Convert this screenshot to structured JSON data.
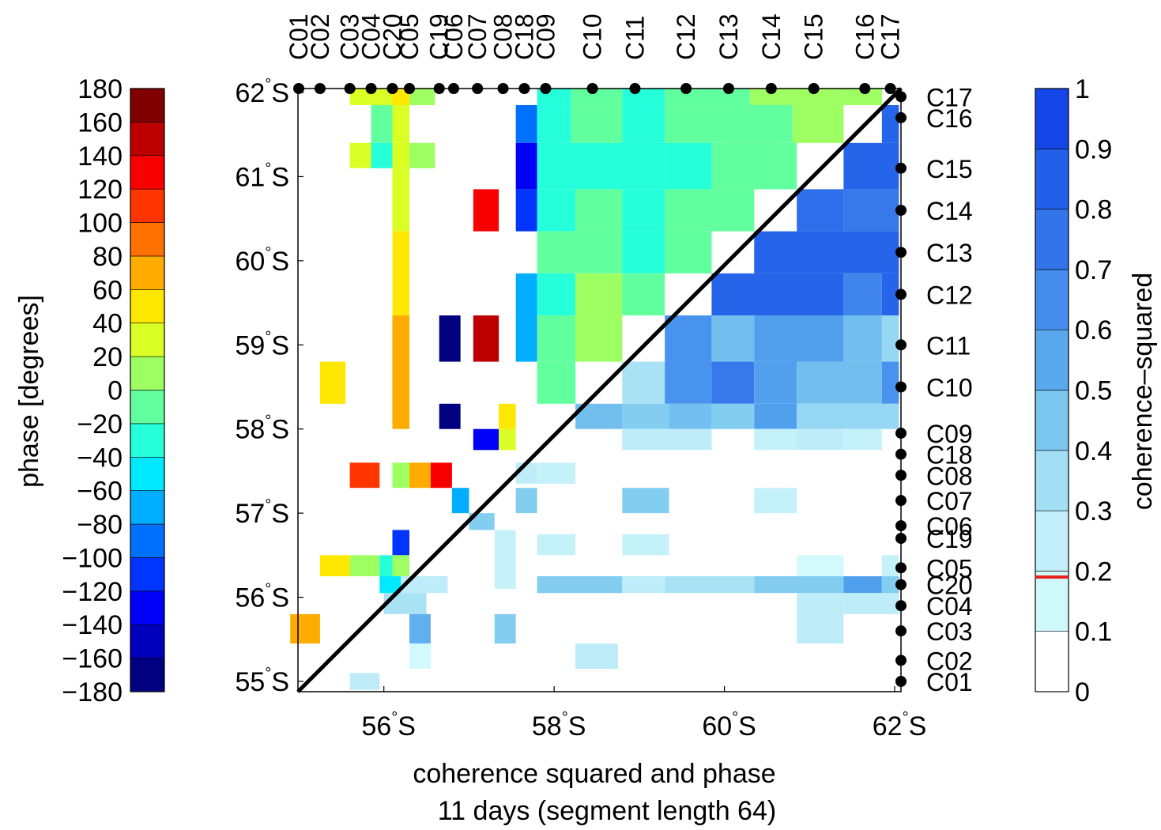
{
  "chart_data": {
    "type": "heatmap",
    "xlabel": "coherence squared and phase",
    "subtitle": "11 days (segment length 64)",
    "x_ticks": [
      {
        "value": 56,
        "label": "56",
        "hemi": "S"
      },
      {
        "value": 58,
        "label": "58",
        "hemi": "S"
      },
      {
        "value": 60,
        "label": "60",
        "hemi": "S"
      },
      {
        "value": 62,
        "label": "62",
        "hemi": "S"
      }
    ],
    "y_ticks": [
      {
        "value": 55,
        "label": "55",
        "hemi": "S"
      },
      {
        "value": 56,
        "label": "56",
        "hemi": "S"
      },
      {
        "value": 57,
        "label": "57",
        "hemi": "S"
      },
      {
        "value": 58,
        "label": "58",
        "hemi": "S"
      },
      {
        "value": 59,
        "label": "59",
        "hemi": "S"
      },
      {
        "value": 60,
        "label": "60",
        "hemi": "S"
      },
      {
        "value": 61,
        "label": "61",
        "hemi": "S"
      },
      {
        "value": 62,
        "label": "62",
        "hemi": "S"
      }
    ],
    "xlim": [
      54.9,
      62.05
    ],
    "ylim": [
      54.9,
      62.05
    ],
    "stations_top": [
      {
        "name": "C01",
        "lat": 55.0
      },
      {
        "name": "C02",
        "lat": 55.25
      },
      {
        "name": "C03",
        "lat": 55.6
      },
      {
        "name": "C04",
        "lat": 55.85
      },
      {
        "name": "C20",
        "lat": 56.1
      },
      {
        "name": "C05",
        "lat": 56.3
      },
      {
        "name": "C19",
        "lat": 56.65
      },
      {
        "name": "C06",
        "lat": 56.82
      },
      {
        "name": "C07",
        "lat": 57.1
      },
      {
        "name": "C08",
        "lat": 57.4
      },
      {
        "name": "C18",
        "lat": 57.65
      },
      {
        "name": "C09",
        "lat": 57.9
      },
      {
        "name": "C10",
        "lat": 58.45
      },
      {
        "name": "C11",
        "lat": 58.95
      },
      {
        "name": "C12",
        "lat": 59.55
      },
      {
        "name": "C13",
        "lat": 60.05
      },
      {
        "name": "C14",
        "lat": 60.55
      },
      {
        "name": "C15",
        "lat": 61.05
      },
      {
        "name": "C16",
        "lat": 61.65
      },
      {
        "name": "C17",
        "lat": 61.95
      }
    ],
    "stations_right": [
      {
        "name": "C17",
        "lat": 61.95
      },
      {
        "name": "C16",
        "lat": 61.7
      },
      {
        "name": "C15",
        "lat": 61.1
      },
      {
        "name": "C14",
        "lat": 60.6
      },
      {
        "name": "C13",
        "lat": 60.1
      },
      {
        "name": "C12",
        "lat": 59.6
      },
      {
        "name": "C11",
        "lat": 59.0
      },
      {
        "name": "C10",
        "lat": 58.5
      },
      {
        "name": "C09",
        "lat": 57.95
      },
      {
        "name": "C18",
        "lat": 57.7
      },
      {
        "name": "C08",
        "lat": 57.45
      },
      {
        "name": "C07",
        "lat": 57.15
      },
      {
        "name": "C06",
        "lat": 56.85
      },
      {
        "name": "C19",
        "lat": 56.7
      },
      {
        "name": "C05",
        "lat": 56.35
      },
      {
        "name": "C20",
        "lat": 56.15
      },
      {
        "name": "C04",
        "lat": 55.9
      },
      {
        "name": "C03",
        "lat": 55.6
      },
      {
        "name": "C02",
        "lat": 55.25
      },
      {
        "name": "C01",
        "lat": 55.0
      }
    ],
    "phase_cells": [
      {
        "x0": 55.6,
        "x1": 55.85,
        "y0": 61.85,
        "y1": 62.05,
        "phase": 20
      },
      {
        "x0": 55.85,
        "x1": 56.1,
        "y0": 61.85,
        "y1": 62.05,
        "phase": 20
      },
      {
        "x0": 56.1,
        "x1": 56.3,
        "y0": 61.85,
        "y1": 62.05,
        "phase": 50
      },
      {
        "x0": 56.3,
        "x1": 56.6,
        "y0": 61.85,
        "y1": 62.05,
        "phase": 5
      },
      {
        "x0": 55.85,
        "x1": 56.1,
        "y0": 61.4,
        "y1": 61.85,
        "phase": -10
      },
      {
        "x0": 56.1,
        "x1": 56.3,
        "y0": 61.4,
        "y1": 61.85,
        "phase": 20
      },
      {
        "x0": 55.6,
        "x1": 55.85,
        "y0": 61.1,
        "y1": 61.4,
        "phase": 25
      },
      {
        "x0": 55.85,
        "x1": 56.1,
        "y0": 61.1,
        "y1": 61.4,
        "phase": -40
      },
      {
        "x0": 56.1,
        "x1": 56.3,
        "y0": 61.1,
        "y1": 61.4,
        "phase": 20
      },
      {
        "x0": 56.3,
        "x1": 56.6,
        "y0": 61.1,
        "y1": 61.4,
        "phase": 10
      },
      {
        "x0": 56.1,
        "x1": 56.3,
        "y0": 60.35,
        "y1": 61.1,
        "phase": 20
      },
      {
        "x0": 56.1,
        "x1": 56.3,
        "y0": 59.35,
        "y1": 60.35,
        "phase": 40
      },
      {
        "x0": 56.1,
        "x1": 56.3,
        "y0": 58.0,
        "y1": 59.35,
        "phase": 65
      },
      {
        "x0": 55.25,
        "x1": 55.55,
        "y0": 58.3,
        "y1": 58.8,
        "phase": 45
      },
      {
        "x0": 56.65,
        "x1": 56.9,
        "y0": 58.8,
        "y1": 59.35,
        "phase": -170
      },
      {
        "x0": 56.65,
        "x1": 56.9,
        "y0": 58.0,
        "y1": 58.3,
        "phase": -180
      },
      {
        "x0": 57.05,
        "x1": 57.35,
        "y0": 60.35,
        "y1": 60.85,
        "phase": 130
      },
      {
        "x0": 57.05,
        "x1": 57.35,
        "y0": 58.8,
        "y1": 59.35,
        "phase": 150
      },
      {
        "x0": 57.35,
        "x1": 57.55,
        "y0": 58.0,
        "y1": 58.3,
        "phase": 45
      },
      {
        "x0": 57.05,
        "x1": 57.35,
        "y0": 57.75,
        "y1": 58.0,
        "phase": -130
      },
      {
        "x0": 57.35,
        "x1": 57.55,
        "y0": 57.75,
        "y1": 58.0,
        "phase": 25
      },
      {
        "x0": 55.6,
        "x1": 55.95,
        "y0": 57.3,
        "y1": 57.6,
        "phase": 100
      },
      {
        "x0": 56.1,
        "x1": 56.3,
        "y0": 57.3,
        "y1": 57.6,
        "phase": 0
      },
      {
        "x0": 56.3,
        "x1": 56.55,
        "y0": 57.3,
        "y1": 57.6,
        "phase": 70
      },
      {
        "x0": 56.55,
        "x1": 56.8,
        "y0": 57.3,
        "y1": 57.6,
        "phase": 130
      },
      {
        "x0": 56.8,
        "x1": 57.0,
        "y0": 57.0,
        "y1": 57.3,
        "phase": -80
      },
      {
        "x0": 56.1,
        "x1": 56.3,
        "y0": 56.5,
        "y1": 56.8,
        "phase": -120
      },
      {
        "x0": 55.25,
        "x1": 55.6,
        "y0": 56.25,
        "y1": 56.5,
        "phase": 40
      },
      {
        "x0": 55.6,
        "x1": 55.95,
        "y0": 56.25,
        "y1": 56.5,
        "phase": 5
      },
      {
        "x0": 55.95,
        "x1": 56.1,
        "y0": 56.25,
        "y1": 56.5,
        "phase": -40
      },
      {
        "x0": 56.1,
        "x1": 56.3,
        "y0": 56.25,
        "y1": 56.5,
        "phase": 10
      },
      {
        "x0": 55.95,
        "x1": 56.2,
        "y0": 56.05,
        "y1": 56.25,
        "phase": -60
      },
      {
        "x0": 54.9,
        "x1": 55.25,
        "y0": 55.45,
        "y1": 55.8,
        "phase": 70
      },
      {
        "x0": 57.8,
        "x1": 58.2,
        "y0": 61.85,
        "y1": 62.05,
        "phase": -30
      },
      {
        "x0": 58.2,
        "x1": 58.8,
        "y0": 61.85,
        "y1": 62.05,
        "phase": -20
      },
      {
        "x0": 58.8,
        "x1": 59.3,
        "y0": 61.85,
        "y1": 62.05,
        "phase": -30
      },
      {
        "x0": 59.3,
        "x1": 60.3,
        "y0": 61.85,
        "y1": 62.05,
        "phase": -10
      },
      {
        "x0": 60.3,
        "x1": 61.4,
        "y0": 61.85,
        "y1": 62.05,
        "phase": 10
      },
      {
        "x0": 61.4,
        "x1": 61.85,
        "y0": 61.85,
        "y1": 62.05,
        "phase": 15
      },
      {
        "x0": 57.55,
        "x1": 57.8,
        "y0": 61.4,
        "y1": 61.85,
        "phase": -100
      },
      {
        "x0": 57.8,
        "x1": 58.2,
        "y0": 61.4,
        "y1": 61.85,
        "phase": -30
      },
      {
        "x0": 58.2,
        "x1": 58.8,
        "y0": 61.4,
        "y1": 61.85,
        "phase": -20
      },
      {
        "x0": 58.8,
        "x1": 59.3,
        "y0": 61.4,
        "y1": 61.85,
        "phase": -30
      },
      {
        "x0": 59.3,
        "x1": 60.8,
        "y0": 61.4,
        "y1": 61.85,
        "phase": -10
      },
      {
        "x0": 60.8,
        "x1": 61.4,
        "y0": 61.4,
        "y1": 61.85,
        "phase": 0
      },
      {
        "x0": 57.55,
        "x1": 57.8,
        "y0": 60.85,
        "y1": 61.4,
        "phase": -140
      },
      {
        "x0": 57.8,
        "x1": 59.3,
        "y0": 60.85,
        "y1": 61.4,
        "phase": -35
      },
      {
        "x0": 59.3,
        "x1": 59.85,
        "y0": 60.85,
        "y1": 61.4,
        "phase": -30
      },
      {
        "x0": 59.85,
        "x1": 60.85,
        "y0": 60.85,
        "y1": 61.4,
        "phase": -10
      },
      {
        "x0": 57.55,
        "x1": 57.8,
        "y0": 60.35,
        "y1": 60.85,
        "phase": -110
      },
      {
        "x0": 57.8,
        "x1": 58.25,
        "y0": 60.35,
        "y1": 60.85,
        "phase": -30
      },
      {
        "x0": 58.25,
        "x1": 58.8,
        "y0": 60.35,
        "y1": 60.85,
        "phase": -10
      },
      {
        "x0": 58.8,
        "x1": 59.3,
        "y0": 60.35,
        "y1": 60.85,
        "phase": -30
      },
      {
        "x0": 59.3,
        "x1": 60.35,
        "y0": 60.35,
        "y1": 60.85,
        "phase": -10
      },
      {
        "x0": 57.8,
        "x1": 58.8,
        "y0": 59.85,
        "y1": 60.35,
        "phase": -10
      },
      {
        "x0": 58.8,
        "x1": 59.3,
        "y0": 59.85,
        "y1": 60.35,
        "phase": -30
      },
      {
        "x0": 59.3,
        "x1": 59.85,
        "y0": 59.85,
        "y1": 60.35,
        "phase": -10
      },
      {
        "x0": 57.55,
        "x1": 57.8,
        "y0": 59.35,
        "y1": 59.85,
        "phase": -80
      },
      {
        "x0": 57.8,
        "x1": 58.25,
        "y0": 59.35,
        "y1": 59.85,
        "phase": -30
      },
      {
        "x0": 58.25,
        "x1": 58.8,
        "y0": 59.35,
        "y1": 59.85,
        "phase": 5
      },
      {
        "x0": 58.8,
        "x1": 59.3,
        "y0": 59.35,
        "y1": 59.85,
        "phase": -10
      },
      {
        "x0": 57.55,
        "x1": 57.8,
        "y0": 58.8,
        "y1": 59.35,
        "phase": -80
      },
      {
        "x0": 57.8,
        "x1": 58.25,
        "y0": 58.8,
        "y1": 59.35,
        "phase": -10
      },
      {
        "x0": 58.25,
        "x1": 58.8,
        "y0": 58.8,
        "y1": 59.35,
        "phase": 5
      },
      {
        "x0": 57.8,
        "x1": 58.25,
        "y0": 58.3,
        "y1": 58.8,
        "phase": -10
      }
    ],
    "coherence_cells": [
      {
        "x0": 61.85,
        "x1": 62.05,
        "y0": 61.4,
        "y1": 61.85,
        "coh": 0.85
      },
      {
        "x0": 61.4,
        "x1": 62.05,
        "y0": 60.85,
        "y1": 61.4,
        "coh": 0.85
      },
      {
        "x0": 60.85,
        "x1": 61.4,
        "y0": 60.35,
        "y1": 60.85,
        "coh": 0.8
      },
      {
        "x0": 61.4,
        "x1": 62.05,
        "y0": 60.35,
        "y1": 60.85,
        "coh": 0.75
      },
      {
        "x0": 60.35,
        "x1": 62.05,
        "y0": 59.85,
        "y1": 60.35,
        "coh": 0.85
      },
      {
        "x0": 59.85,
        "x1": 61.4,
        "y0": 59.35,
        "y1": 59.85,
        "coh": 0.85
      },
      {
        "x0": 61.4,
        "x1": 61.85,
        "y0": 59.35,
        "y1": 59.85,
        "coh": 0.7
      },
      {
        "x0": 61.85,
        "x1": 62.05,
        "y0": 59.35,
        "y1": 59.85,
        "coh": 0.85
      },
      {
        "x0": 59.3,
        "x1": 59.85,
        "y0": 58.8,
        "y1": 59.35,
        "coh": 0.65
      },
      {
        "x0": 59.85,
        "x1": 60.35,
        "y0": 58.8,
        "y1": 59.35,
        "coh": 0.5
      },
      {
        "x0": 60.35,
        "x1": 61.4,
        "y0": 58.8,
        "y1": 59.35,
        "coh": 0.6
      },
      {
        "x0": 61.4,
        "x1": 61.85,
        "y0": 58.8,
        "y1": 59.35,
        "coh": 0.5
      },
      {
        "x0": 61.85,
        "x1": 62.05,
        "y0": 58.8,
        "y1": 59.35,
        "coh": 0.4
      },
      {
        "x0": 58.8,
        "x1": 59.3,
        "y0": 58.3,
        "y1": 58.8,
        "coh": 0.35
      },
      {
        "x0": 59.3,
        "x1": 59.85,
        "y0": 58.3,
        "y1": 58.8,
        "coh": 0.65
      },
      {
        "x0": 59.85,
        "x1": 60.35,
        "y0": 58.3,
        "y1": 58.8,
        "coh": 0.75
      },
      {
        "x0": 60.35,
        "x1": 60.85,
        "y0": 58.3,
        "y1": 58.8,
        "coh": 0.6
      },
      {
        "x0": 60.85,
        "x1": 61.85,
        "y0": 58.3,
        "y1": 58.8,
        "coh": 0.5
      },
      {
        "x0": 61.85,
        "x1": 62.05,
        "y0": 58.3,
        "y1": 58.8,
        "coh": 0.65
      },
      {
        "x0": 58.25,
        "x1": 58.8,
        "y0": 58.0,
        "y1": 58.3,
        "coh": 0.5
      },
      {
        "x0": 58.8,
        "x1": 59.35,
        "y0": 58.0,
        "y1": 58.3,
        "coh": 0.45
      },
      {
        "x0": 59.35,
        "x1": 59.85,
        "y0": 58.0,
        "y1": 58.3,
        "coh": 0.5
      },
      {
        "x0": 59.85,
        "x1": 60.35,
        "y0": 58.0,
        "y1": 58.3,
        "coh": 0.45
      },
      {
        "x0": 60.35,
        "x1": 60.85,
        "y0": 58.0,
        "y1": 58.3,
        "coh": 0.6
      },
      {
        "x0": 60.85,
        "x1": 62.05,
        "y0": 58.0,
        "y1": 58.3,
        "coh": 0.4
      },
      {
        "x0": 58.8,
        "x1": 59.85,
        "y0": 57.75,
        "y1": 58.0,
        "coh": 0.3
      },
      {
        "x0": 60.35,
        "x1": 60.85,
        "y0": 57.75,
        "y1": 58.0,
        "coh": 0.25
      },
      {
        "x0": 60.85,
        "x1": 61.4,
        "y0": 57.75,
        "y1": 58.0,
        "coh": 0.3
      },
      {
        "x0": 61.4,
        "x1": 61.85,
        "y0": 57.75,
        "y1": 58.0,
        "coh": 0.25
      },
      {
        "x0": 57.55,
        "x1": 57.8,
        "y0": 57.35,
        "y1": 57.6,
        "coh": 0.3
      },
      {
        "x0": 57.8,
        "x1": 58.25,
        "y0": 57.35,
        "y1": 57.6,
        "coh": 0.25
      },
      {
        "x0": 57.55,
        "x1": 57.8,
        "y0": 57.0,
        "y1": 57.3,
        "coh": 0.45
      },
      {
        "x0": 58.8,
        "x1": 59.35,
        "y0": 57.0,
        "y1": 57.3,
        "coh": 0.45
      },
      {
        "x0": 60.35,
        "x1": 60.85,
        "y0": 57.0,
        "y1": 57.3,
        "coh": 0.25
      },
      {
        "x0": 57.0,
        "x1": 57.3,
        "y0": 56.8,
        "y1": 57.0,
        "coh": 0.45
      },
      {
        "x0": 57.3,
        "x1": 57.55,
        "y0": 56.1,
        "y1": 56.8,
        "coh": 0.25
      },
      {
        "x0": 57.8,
        "x1": 58.25,
        "y0": 56.5,
        "y1": 56.75,
        "coh": 0.25
      },
      {
        "x0": 58.8,
        "x1": 59.35,
        "y0": 56.5,
        "y1": 56.75,
        "coh": 0.25
      },
      {
        "x0": 56.2,
        "x1": 56.75,
        "y0": 56.05,
        "y1": 56.25,
        "coh": 0.3
      },
      {
        "x0": 57.8,
        "x1": 58.8,
        "y0": 56.05,
        "y1": 56.25,
        "coh": 0.45
      },
      {
        "x0": 58.8,
        "x1": 59.3,
        "y0": 56.05,
        "y1": 56.25,
        "coh": 0.3
      },
      {
        "x0": 59.3,
        "x1": 60.35,
        "y0": 56.05,
        "y1": 56.25,
        "coh": 0.35
      },
      {
        "x0": 60.35,
        "x1": 61.4,
        "y0": 56.05,
        "y1": 56.25,
        "coh": 0.45
      },
      {
        "x0": 61.4,
        "x1": 61.85,
        "y0": 56.05,
        "y1": 56.25,
        "coh": 0.6
      },
      {
        "x0": 61.85,
        "x1": 62.05,
        "y0": 56.05,
        "y1": 56.25,
        "coh": 0.45
      },
      {
        "x0": 60.85,
        "x1": 61.4,
        "y0": 56.25,
        "y1": 56.5,
        "coh": 0.15
      },
      {
        "x0": 61.85,
        "x1": 62.05,
        "y0": 56.25,
        "y1": 56.5,
        "coh": 0.25
      },
      {
        "x0": 56.0,
        "x1": 56.5,
        "y0": 55.8,
        "y1": 56.05,
        "coh": 0.35
      },
      {
        "x0": 60.85,
        "x1": 61.4,
        "y0": 55.45,
        "y1": 56.05,
        "coh": 0.3
      },
      {
        "x0": 61.4,
        "x1": 62.05,
        "y0": 55.8,
        "y1": 56.05,
        "coh": 0.3
      },
      {
        "x0": 56.3,
        "x1": 56.55,
        "y0": 55.45,
        "y1": 55.8,
        "coh": 0.55
      },
      {
        "x0": 57.3,
        "x1": 57.55,
        "y0": 55.45,
        "y1": 55.8,
        "coh": 0.45
      },
      {
        "x0": 56.3,
        "x1": 56.55,
        "y0": 55.15,
        "y1": 55.45,
        "coh": 0.15
      },
      {
        "x0": 58.25,
        "x1": 58.75,
        "y0": 55.15,
        "y1": 55.45,
        "coh": 0.3
      },
      {
        "x0": 55.6,
        "x1": 55.95,
        "y0": 54.9,
        "y1": 55.1,
        "coh": 0.3
      }
    ],
    "phase_colorbar": {
      "label": "phase [degrees]",
      "range": [
        -180,
        180
      ],
      "ticks": [
        180,
        160,
        140,
        120,
        100,
        80,
        60,
        40,
        20,
        0,
        -20,
        -40,
        -60,
        -80,
        -100,
        -120,
        -140,
        -160,
        -180
      ],
      "tick_labels": [
        "180",
        "160",
        "140",
        "120",
        "100",
        "80",
        "60",
        "40",
        "20",
        "0",
        "−20",
        "−40",
        "−60",
        "−80",
        "−100",
        "−120",
        "−140",
        "−160",
        "−180"
      ]
    },
    "coherence_colorbar": {
      "label": "coherence–squared",
      "range": [
        0,
        1
      ],
      "ticks": [
        1,
        0.9,
        0.8,
        0.7,
        0.6,
        0.5,
        0.4,
        0.3,
        0.2,
        0.1,
        0
      ],
      "tick_labels": [
        "1",
        "0.9",
        "0.8",
        "0.7",
        "0.6",
        "0.5",
        "0.4",
        "0.3",
        "0.2",
        "0.1",
        "0"
      ],
      "significance_level": 0.19,
      "significance_color": "#e8221b"
    },
    "grid": false,
    "diagonal": true
  }
}
